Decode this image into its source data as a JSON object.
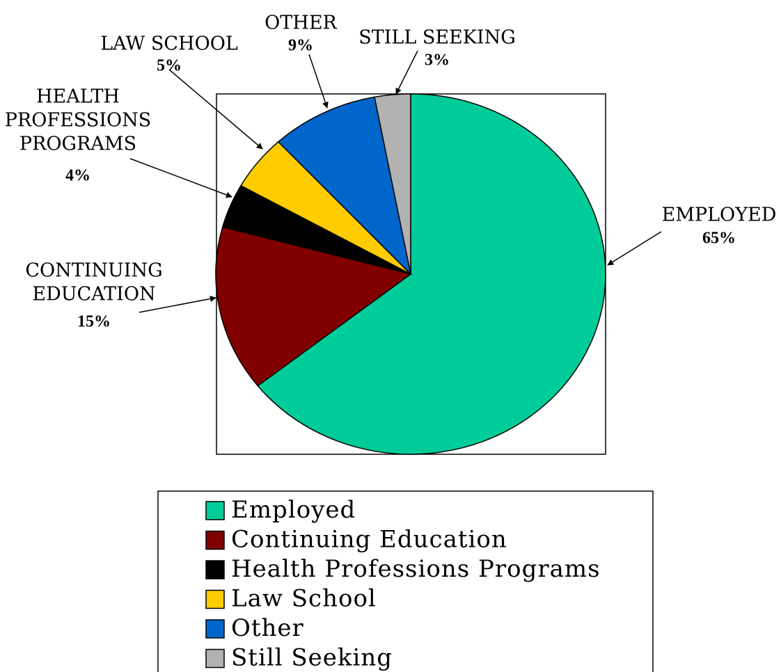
{
  "chart_data": {
    "type": "pie",
    "start_angle_deg": 0,
    "direction": "clockwise",
    "slices": [
      {
        "name": "Employed",
        "label_lines": [
          "EMPLOYED"
        ],
        "percent_label": "65%",
        "value": 65,
        "color": "#00CC99"
      },
      {
        "name": "Continuing Education",
        "label_lines": [
          "CONTINUING",
          "EDUCATION"
        ],
        "percent_label": "15%",
        "value": 15,
        "color": "#800000"
      },
      {
        "name": "Health Professions Programs",
        "label_lines": [
          "HEALTH",
          "PROFESSIONS",
          "PROGRAMS"
        ],
        "percent_label": "4%",
        "value": 4,
        "color": "#000000"
      },
      {
        "name": "Law School",
        "label_lines": [
          "LAW SCHOOL"
        ],
        "percent_label": "5%",
        "value": 5,
        "color": "#FFCC00"
      },
      {
        "name": "Other",
        "label_lines": [
          "OTHER"
        ],
        "percent_label": "9%",
        "value": 9,
        "color": "#0066CC"
      },
      {
        "name": "Still Seeking",
        "label_lines": [
          "STILL SEEKING"
        ],
        "percent_label": "3%",
        "value": 3,
        "color": "#B2B2B2"
      }
    ],
    "legend": {
      "placement": "bottom",
      "entries": [
        "Employed",
        "Continuing Education",
        "Health Professions Programs",
        "Law School",
        "Other",
        "Still Seeking"
      ]
    }
  }
}
